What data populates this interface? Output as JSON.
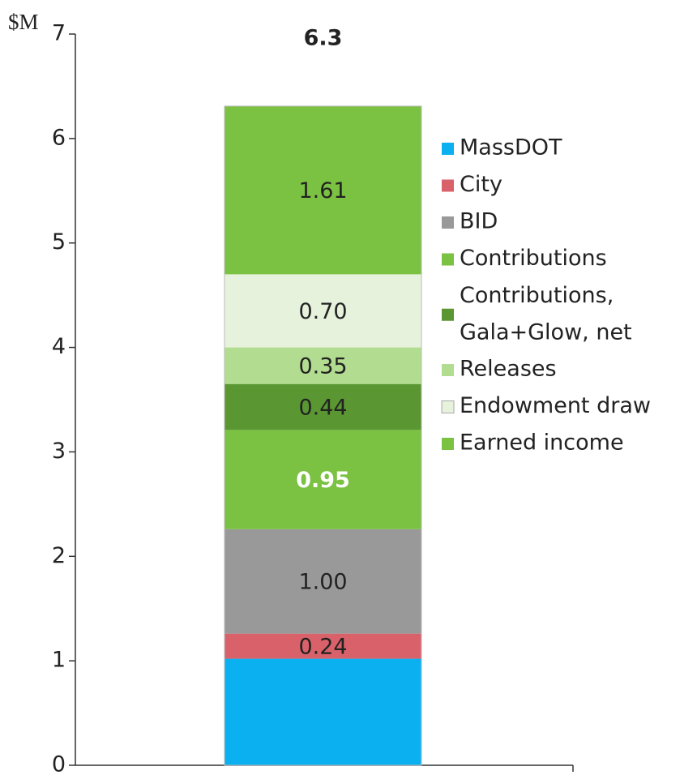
{
  "chart_data": {
    "type": "stacked_bar",
    "y_label": "$M",
    "categories": [
      null
    ],
    "totals": [
      6.3
    ],
    "ylim": [
      0,
      7
    ],
    "yticks": [
      0,
      1,
      2,
      3,
      4,
      5,
      6,
      7
    ],
    "series": [
      {
        "name": "MassDOT",
        "color": "#0bb0f0",
        "values": [
          1.02
        ]
      },
      {
        "name": "City",
        "color": "#d9626a",
        "values": [
          0.24
        ]
      },
      {
        "name": "BID",
        "color": "#999999",
        "values": [
          1
        ],
        "value_labels": [
          "1.00"
        ]
      },
      {
        "name": "Contributions",
        "color": "#7bc142",
        "values": [
          0.95
        ]
      },
      {
        "name": "Contributions, Gala+Glow, net",
        "color": "#5a9632",
        "values": [
          0.44
        ]
      },
      {
        "name": "Releases",
        "color": "#b2dc8f",
        "values": [
          0.35
        ]
      },
      {
        "name": "Endowment draw",
        "color": "#e6f2dc",
        "values": [
          0.7
        ],
        "value_labels": [
          "0.70"
        ]
      },
      {
        "name": "Earned income",
        "color": "#7bc142",
        "values": [
          1.61
        ]
      }
    ]
  }
}
